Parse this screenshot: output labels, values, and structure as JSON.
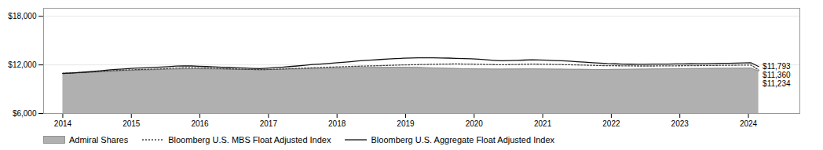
{
  "chart_data": {
    "type": "line",
    "x": [
      2014.0,
      2014.1103,
      2014.2207,
      2014.331,
      2014.4413,
      2014.5516,
      2014.662,
      2014.7723,
      2014.8826,
      2014.9929,
      2015.1033,
      2015.2136,
      2015.3239,
      2015.4342,
      2015.5446,
      2015.6549,
      2015.7652,
      2015.8755,
      2015.9859,
      2016.0962,
      2016.2065,
      2016.3168,
      2016.4272,
      2016.5375,
      2016.6478,
      2016.7582,
      2016.8685,
      2016.9788,
      2017.0891,
      2017.1995,
      2017.3098,
      2017.4201,
      2017.5304,
      2017.6408,
      2017.7511,
      2017.8614,
      2017.9717,
      2018.0821,
      2018.1924,
      2018.3027,
      2018.413,
      2018.5234,
      2018.6337,
      2018.744,
      2018.8543,
      2018.9647,
      2019.075,
      2019.1853,
      2019.2957,
      2019.406,
      2019.5163,
      2019.6266,
      2019.737,
      2019.8473,
      2019.9576,
      2020.0679,
      2020.1783,
      2020.2886,
      2020.3989,
      2020.5092,
      2020.6196,
      2020.7299,
      2020.8402,
      2020.9505,
      2021.0609,
      2021.1712,
      2021.2815,
      2021.3918,
      2021.5022,
      2021.6125,
      2021.7228,
      2021.8332,
      2021.9435,
      2022.0538,
      2022.1641,
      2022.2745,
      2022.3848,
      2022.4951,
      2022.6054,
      2022.7158,
      2022.8261,
      2022.9364,
      2023.0467,
      2023.1571,
      2023.2674,
      2023.3777,
      2023.488,
      2023.5984,
      2023.7087,
      2023.819,
      2023.9293,
      2024.0397,
      2024.15
    ],
    "series": [
      {
        "name": "Admiral Shares",
        "type": "area",
        "color": "#b0b0b0",
        "line_style": "solid",
        "values": [
          10958,
          10975,
          11010,
          11040,
          11080,
          11130,
          11200,
          11250,
          11290,
          11320,
          11350,
          11370,
          11400,
          11430,
          11460,
          11490,
          11510,
          11530,
          11520,
          11505,
          11490,
          11470,
          11455,
          11440,
          11425,
          11415,
          11405,
          11415,
          11430,
          11450,
          11475,
          11500,
          11525,
          11550,
          11570,
          11590,
          11610,
          11630,
          11650,
          11670,
          11685,
          11695,
          11705,
          11715,
          11720,
          11715,
          11705,
          11690,
          11660,
          11630,
          11605,
          11580,
          11558,
          11538,
          11518,
          11508,
          11498,
          11490,
          11488,
          11495,
          11498,
          11505,
          11508,
          11500,
          11490,
          11480,
          11470,
          11460,
          11458,
          11450,
          11442,
          11440,
          11440,
          11448,
          11458,
          11468,
          11478,
          11488,
          11498,
          11508,
          11518,
          11528,
          11538,
          11548,
          11555,
          11562,
          11570,
          11578,
          11585,
          11592,
          11600,
          11610,
          11234
        ]
      },
      {
        "name": "Bloomberg U.S. MBS Float Adjusted Index",
        "type": "line",
        "color": "#444444",
        "line_style": "dotted",
        "values": [
          10958,
          10995,
          11042,
          11090,
          11145,
          11195,
          11265,
          11308,
          11355,
          11395,
          11428,
          11448,
          11478,
          11508,
          11555,
          11605,
          11635,
          11648,
          11630,
          11598,
          11568,
          11538,
          11508,
          11480,
          11458,
          11438,
          11418,
          11438,
          11465,
          11495,
          11535,
          11565,
          11605,
          11645,
          11675,
          11715,
          11748,
          11775,
          11808,
          11838,
          11865,
          11885,
          11915,
          11945,
          11975,
          11998,
          12018,
          12038,
          12058,
          12075,
          12095,
          12108,
          12118,
          12108,
          12095,
          12075,
          12055,
          12038,
          12028,
          12038,
          12055,
          12075,
          12095,
          12085,
          12075,
          12055,
          12038,
          12018,
          11998,
          11975,
          11948,
          11928,
          11908,
          11898,
          11888,
          11878,
          11868,
          11868,
          11868,
          11878,
          11878,
          11888,
          11898,
          11908,
          11918,
          11928,
          11938,
          11948,
          11958,
          11968,
          11978,
          11988,
          11360
        ]
      },
      {
        "name": "Bloomberg U.S. Aggregate Float Adjusted Index",
        "type": "line",
        "color": "#111111",
        "line_style": "solid",
        "values": [
          10948,
          10988,
          11048,
          11118,
          11198,
          11278,
          11375,
          11438,
          11498,
          11568,
          11608,
          11638,
          11678,
          11728,
          11788,
          11848,
          11878,
          11868,
          11835,
          11795,
          11755,
          11715,
          11675,
          11635,
          11605,
          11575,
          11545,
          11595,
          11655,
          11715,
          11795,
          11868,
          11958,
          12048,
          12108,
          12178,
          12248,
          12328,
          12398,
          12488,
          12558,
          12608,
          12668,
          12728,
          12778,
          12818,
          12848,
          12868,
          12878,
          12868,
          12858,
          12838,
          12808,
          12778,
          12748,
          12698,
          12638,
          12568,
          12518,
          12538,
          12565,
          12595,
          12635,
          12615,
          12585,
          12545,
          12505,
          12455,
          12395,
          12335,
          12275,
          12215,
          12165,
          12138,
          12108,
          12088,
          12078,
          12078,
          12098,
          12108,
          12108,
          12118,
          12118,
          12138,
          12148,
          12158,
          12178,
          12188,
          12198,
          12218,
          12238,
          12258,
          11793
        ]
      }
    ],
    "annotations": [
      {
        "text": "$11,793",
        "x": 2024.15,
        "y": 11793
      },
      {
        "text": "$11,360",
        "x": 2024.15,
        "y": 11360
      },
      {
        "text": "$11,234",
        "x": 2024.15,
        "y": 11234
      }
    ],
    "xlim": [
      2013.72,
      2024.75
    ],
    "xticks": [
      2014,
      2015,
      2016,
      2017,
      2018,
      2019,
      2020,
      2021,
      2022,
      2023,
      2024
    ],
    "ylim": [
      6000,
      19000
    ],
    "yticks": [
      {
        "value": 6000,
        "label": "$6,000"
      },
      {
        "value": 12000,
        "label": "$12,000"
      },
      {
        "value": 18000,
        "label": "$18,000"
      }
    ],
    "grid": true,
    "legend": "bottom"
  }
}
